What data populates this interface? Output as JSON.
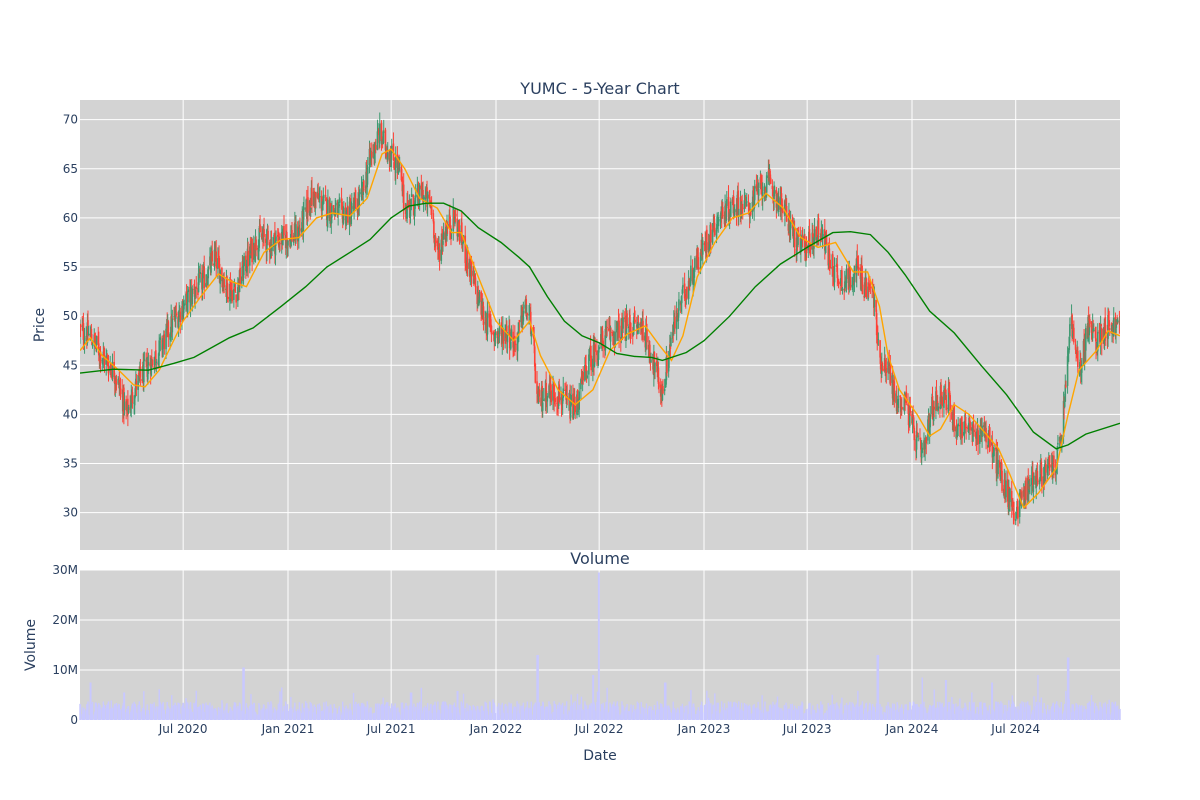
{
  "chart_data": [
    {
      "type": "candlestick",
      "title": "YUMC - 5-Year Chart",
      "ylabel": "Price",
      "xlabel": "",
      "ylim": [
        26.2,
        72
      ],
      "yticks": [
        30,
        35,
        40,
        45,
        50,
        55,
        60,
        65,
        70
      ],
      "xlim": [
        "2020-01-02",
        "2024-12-31"
      ],
      "x_ticks": [
        {
          "date": "2020-07-01",
          "label": "Jul 2020"
        },
        {
          "date": "2021-01-01",
          "label": "Jan 2021"
        },
        {
          "date": "2021-07-01",
          "label": "Jul 2021"
        },
        {
          "date": "2022-01-01",
          "label": "Jan 2022"
        },
        {
          "date": "2022-07-01",
          "label": "Jul 2022"
        },
        {
          "date": "2023-01-01",
          "label": "Jan 2023"
        },
        {
          "date": "2023-07-01",
          "label": "Jul 2023"
        },
        {
          "date": "2024-01-01",
          "label": "Jan 2024"
        },
        {
          "date": "2024-07-01",
          "label": "Jul 2024"
        }
      ],
      "grid": true,
      "background": "#d3d3d3",
      "colors": {
        "increasing": "#3d9970",
        "decreasing": "#ff4136",
        "ma_short": "#ffa500",
        "ma_long": "#008000"
      },
      "price_path": [
        [
          "2020-01-02",
          48.5
        ],
        [
          "2020-01-20",
          48
        ],
        [
          "2020-02-10",
          46
        ],
        [
          "2020-03-01",
          44.5
        ],
        [
          "2020-03-15",
          42
        ],
        [
          "2020-03-23",
          40
        ],
        [
          "2020-04-10",
          43
        ],
        [
          "2020-05-01",
          45
        ],
        [
          "2020-05-20",
          46.5
        ],
        [
          "2020-06-10",
          49
        ],
        [
          "2020-07-01",
          51
        ],
        [
          "2020-07-20",
          52.5
        ],
        [
          "2020-08-10",
          54
        ],
        [
          "2020-08-25",
          56
        ],
        [
          "2020-09-15",
          53
        ],
        [
          "2020-10-01",
          52.5
        ],
        [
          "2020-10-20",
          55.5
        ],
        [
          "2020-11-10",
          58
        ],
        [
          "2020-12-01",
          57.5
        ],
        [
          "2021-01-01",
          58
        ],
        [
          "2021-01-20",
          58.5
        ],
        [
          "2021-02-10",
          62
        ],
        [
          "2021-02-20",
          62
        ],
        [
          "2021-03-10",
          61
        ],
        [
          "2021-04-01",
          60.5
        ],
        [
          "2021-04-20",
          60.5
        ],
        [
          "2021-05-10",
          62
        ],
        [
          "2021-05-25",
          66
        ],
        [
          "2021-06-10",
          68.5
        ],
        [
          "2021-06-25",
          67
        ],
        [
          "2021-07-15",
          65
        ],
        [
          "2021-07-25",
          61
        ],
        [
          "2021-08-10",
          61.5
        ],
        [
          "2021-08-25",
          62.5
        ],
        [
          "2021-09-10",
          61
        ],
        [
          "2021-09-20",
          56
        ],
        [
          "2021-10-01",
          58.5
        ],
        [
          "2021-10-20",
          60
        ],
        [
          "2021-11-01",
          58
        ],
        [
          "2021-11-20",
          54
        ],
        [
          "2021-12-10",
          50
        ],
        [
          "2022-01-01",
          48
        ],
        [
          "2022-01-20",
          48.5
        ],
        [
          "2022-02-05",
          47
        ],
        [
          "2022-02-20",
          51
        ],
        [
          "2022-03-05",
          49
        ],
        [
          "2022-03-15",
          41
        ],
        [
          "2022-04-01",
          42.5
        ],
        [
          "2022-04-20",
          42
        ],
        [
          "2022-05-05",
          41
        ],
        [
          "2022-05-20",
          40.5
        ],
        [
          "2022-06-10",
          45
        ],
        [
          "2022-06-25",
          46.5
        ],
        [
          "2022-07-15",
          48
        ],
        [
          "2022-08-05",
          48.5
        ],
        [
          "2022-08-25",
          49
        ],
        [
          "2022-09-15",
          49
        ],
        [
          "2022-10-01",
          46
        ],
        [
          "2022-10-20",
          42
        ],
        [
          "2022-11-05",
          48
        ],
        [
          "2022-11-25",
          52
        ],
        [
          "2022-12-15",
          55
        ],
        [
          "2023-01-05",
          57.5
        ],
        [
          "2023-01-25",
          60
        ],
        [
          "2023-02-15",
          61
        ],
        [
          "2023-03-01",
          61.5
        ],
        [
          "2023-03-20",
          61
        ],
        [
          "2023-04-10",
          63
        ],
        [
          "2023-04-25",
          63.5
        ],
        [
          "2023-05-15",
          61.5
        ],
        [
          "2023-06-01",
          59.5
        ],
        [
          "2023-06-15",
          57
        ],
        [
          "2023-07-05",
          57.5
        ],
        [
          "2023-07-25",
          59
        ],
        [
          "2023-08-10",
          55.5
        ],
        [
          "2023-08-25",
          54
        ],
        [
          "2023-09-10",
          53.5
        ],
        [
          "2023-09-25",
          55
        ],
        [
          "2023-10-10",
          53
        ],
        [
          "2023-10-25",
          52.5
        ],
        [
          "2023-11-05",
          45.5
        ],
        [
          "2023-11-20",
          45
        ],
        [
          "2023-12-05",
          41
        ],
        [
          "2023-12-20",
          41.5
        ],
        [
          "2024-01-05",
          38
        ],
        [
          "2024-01-20",
          35.5
        ],
        [
          "2024-02-05",
          40.5
        ],
        [
          "2024-02-20",
          42
        ],
        [
          "2024-03-05",
          41.5
        ],
        [
          "2024-03-20",
          38.5
        ],
        [
          "2024-04-05",
          39
        ],
        [
          "2024-04-20",
          37.5
        ],
        [
          "2024-05-05",
          39
        ],
        [
          "2024-05-20",
          36.5
        ],
        [
          "2024-06-01",
          34.5
        ],
        [
          "2024-06-15",
          32
        ],
        [
          "2024-07-01",
          30
        ],
        [
          "2024-07-15",
          32
        ],
        [
          "2024-08-01",
          33.5
        ],
        [
          "2024-08-20",
          34
        ],
        [
          "2024-09-10",
          35
        ],
        [
          "2024-09-20",
          38
        ],
        [
          "2024-10-01",
          46
        ],
        [
          "2024-10-05",
          50
        ],
        [
          "2024-10-20",
          44
        ],
        [
          "2024-11-05",
          49
        ],
        [
          "2024-11-20",
          47.5
        ],
        [
          "2024-12-05",
          49
        ],
        [
          "2024-12-31",
          49
        ]
      ],
      "ma_short": [
        [
          "2020-01-02",
          46.5
        ],
        [
          "2020-01-20",
          47.8
        ],
        [
          "2020-02-10",
          46
        ],
        [
          "2020-03-10",
          44.5
        ],
        [
          "2020-04-05",
          43
        ],
        [
          "2020-04-25",
          42.8
        ],
        [
          "2020-05-20",
          44.5
        ],
        [
          "2020-06-10",
          47
        ],
        [
          "2020-07-01",
          49.5
        ],
        [
          "2020-08-01",
          52
        ],
        [
          "2020-09-01",
          54.3
        ],
        [
          "2020-09-25",
          53.5
        ],
        [
          "2020-10-20",
          53
        ],
        [
          "2020-11-20",
          56.5
        ],
        [
          "2020-12-20",
          57.8
        ],
        [
          "2021-01-20",
          58
        ],
        [
          "2021-02-20",
          60
        ],
        [
          "2021-03-20",
          60.5
        ],
        [
          "2021-04-20",
          60.2
        ],
        [
          "2021-05-20",
          62
        ],
        [
          "2021-06-15",
          66.5
        ],
        [
          "2021-07-01",
          67
        ],
        [
          "2021-07-25",
          65
        ],
        [
          "2021-08-20",
          62
        ],
        [
          "2021-09-20",
          61
        ],
        [
          "2021-10-15",
          58.5
        ],
        [
          "2021-11-01",
          58.5
        ],
        [
          "2021-12-01",
          54
        ],
        [
          "2022-01-01",
          49.5
        ],
        [
          "2022-02-01",
          47.5
        ],
        [
          "2022-03-01",
          49.5
        ],
        [
          "2022-03-20",
          46
        ],
        [
          "2022-04-20",
          42.5
        ],
        [
          "2022-05-20",
          41
        ],
        [
          "2022-06-20",
          42.5
        ],
        [
          "2022-07-20",
          46.5
        ],
        [
          "2022-08-20",
          48.2
        ],
        [
          "2022-09-20",
          49
        ],
        [
          "2022-10-15",
          47
        ],
        [
          "2022-11-05",
          45.5
        ],
        [
          "2022-11-25",
          48
        ],
        [
          "2022-12-20",
          54
        ],
        [
          "2023-01-20",
          57.5
        ],
        [
          "2023-02-20",
          60
        ],
        [
          "2023-03-20",
          60.5
        ],
        [
          "2023-04-20",
          62.5
        ],
        [
          "2023-05-20",
          61
        ],
        [
          "2023-06-20",
          58
        ],
        [
          "2023-07-20",
          57
        ],
        [
          "2023-08-20",
          57.5
        ],
        [
          "2023-09-20",
          54.5
        ],
        [
          "2023-10-15",
          54.5
        ],
        [
          "2023-11-05",
          51
        ],
        [
          "2023-11-20",
          46
        ],
        [
          "2023-12-10",
          42.5
        ],
        [
          "2024-01-10",
          40
        ],
        [
          "2024-02-01",
          37.8
        ],
        [
          "2024-02-20",
          38.5
        ],
        [
          "2024-03-15",
          41
        ],
        [
          "2024-04-10",
          40
        ],
        [
          "2024-05-10",
          38
        ],
        [
          "2024-06-01",
          36.5
        ],
        [
          "2024-06-20",
          34
        ],
        [
          "2024-07-15",
          30.5
        ],
        [
          "2024-08-10",
          32
        ],
        [
          "2024-09-10",
          34.5
        ],
        [
          "2024-10-01",
          40
        ],
        [
          "2024-10-20",
          44.5
        ],
        [
          "2024-11-20",
          46.5
        ],
        [
          "2024-12-10",
          48.5
        ],
        [
          "2024-12-31",
          48
        ]
      ],
      "ma_long": [
        [
          "2020-01-02",
          44.2
        ],
        [
          "2020-03-01",
          44.6
        ],
        [
          "2020-05-01",
          44.5
        ],
        [
          "2020-06-15",
          45.2
        ],
        [
          "2020-07-20",
          45.8
        ],
        [
          "2020-08-20",
          46.8
        ],
        [
          "2020-09-20",
          47.8
        ],
        [
          "2020-11-01",
          48.8
        ],
        [
          "2020-12-20",
          51
        ],
        [
          "2021-02-01",
          53
        ],
        [
          "2021-03-10",
          55
        ],
        [
          "2021-04-20",
          56.5
        ],
        [
          "2021-05-25",
          57.8
        ],
        [
          "2021-07-01",
          60
        ],
        [
          "2021-08-01",
          61.2
        ],
        [
          "2021-09-01",
          61.5
        ],
        [
          "2021-10-01",
          61.5
        ],
        [
          "2021-11-01",
          60.7
        ],
        [
          "2021-12-01",
          59
        ],
        [
          "2022-01-10",
          57.5
        ],
        [
          "2022-02-10",
          56
        ],
        [
          "2022-03-01",
          55
        ],
        [
          "2022-04-01",
          52
        ],
        [
          "2022-05-01",
          49.5
        ],
        [
          "2022-06-01",
          48
        ],
        [
          "2022-07-01",
          47.3
        ],
        [
          "2022-08-01",
          46.2
        ],
        [
          "2022-09-01",
          45.9
        ],
        [
          "2022-10-01",
          45.8
        ],
        [
          "2022-10-20",
          45.5
        ],
        [
          "2022-12-01",
          46.3
        ],
        [
          "2023-01-01",
          47.5
        ],
        [
          "2023-02-15",
          50
        ],
        [
          "2023-04-01",
          53
        ],
        [
          "2023-05-15",
          55.3
        ],
        [
          "2023-07-01",
          57
        ],
        [
          "2023-08-15",
          58.5
        ],
        [
          "2023-09-15",
          58.6
        ],
        [
          "2023-10-20",
          58.3
        ],
        [
          "2023-11-20",
          56.5
        ],
        [
          "2023-12-20",
          54.2
        ],
        [
          "2024-02-01",
          50.5
        ],
        [
          "2024-03-15",
          48.3
        ],
        [
          "2024-05-01",
          45
        ],
        [
          "2024-06-15",
          42
        ],
        [
          "2024-08-01",
          38.2
        ],
        [
          "2024-09-10",
          36.5
        ],
        [
          "2024-10-01",
          36.9
        ],
        [
          "2024-11-01",
          38
        ],
        [
          "2024-12-31",
          39.1
        ]
      ]
    },
    {
      "type": "bar",
      "title": "Volume",
      "ylabel": "Volume",
      "xlabel": "Date",
      "ylim": [
        0,
        30000000
      ],
      "y_ticks": [
        {
          "value": 0,
          "label": "0"
        },
        {
          "value": 10000000,
          "label": "10M"
        },
        {
          "value": 20000000,
          "label": "20M"
        },
        {
          "value": 30000000,
          "label": "30M"
        }
      ],
      "x_ticks": [
        {
          "date": "2020-07-01",
          "label": "Jul 2020"
        },
        {
          "date": "2021-01-01",
          "label": "Jan 2021"
        },
        {
          "date": "2021-07-01",
          "label": "Jul 2021"
        },
        {
          "date": "2022-01-01",
          "label": "Jan 2022"
        },
        {
          "date": "2022-07-01",
          "label": "Jul 2022"
        },
        {
          "date": "2023-01-01",
          "label": "Jan 2023"
        },
        {
          "date": "2023-07-01",
          "label": "Jul 2023"
        },
        {
          "date": "2024-01-01",
          "label": "Jan 2024"
        },
        {
          "date": "2024-07-01",
          "label": "Jul 2024"
        }
      ],
      "bar_color": "#c8c8ff",
      "background": "#d3d3d3",
      "typical_volume": 2500000,
      "spikes": [
        [
          "2020-01-20",
          7500000
        ],
        [
          "2020-03-20",
          5500000
        ],
        [
          "2020-10-15",
          10500000
        ],
        [
          "2020-12-20",
          6500000
        ],
        [
          "2021-08-05",
          5500000
        ],
        [
          "2021-10-25",
          5800000
        ],
        [
          "2022-03-15",
          13000000
        ],
        [
          "2022-06-20",
          9000000
        ],
        [
          "2022-07-01",
          29500000
        ],
        [
          "2022-10-25",
          7500000
        ],
        [
          "2023-11-02",
          13000000
        ],
        [
          "2024-01-20",
          8500000
        ],
        [
          "2024-03-01",
          8000000
        ],
        [
          "2024-05-20",
          7500000
        ],
        [
          "2024-08-10",
          9000000
        ],
        [
          "2024-10-01",
          12500000
        ],
        [
          "2024-11-10",
          5000000
        ]
      ]
    }
  ]
}
